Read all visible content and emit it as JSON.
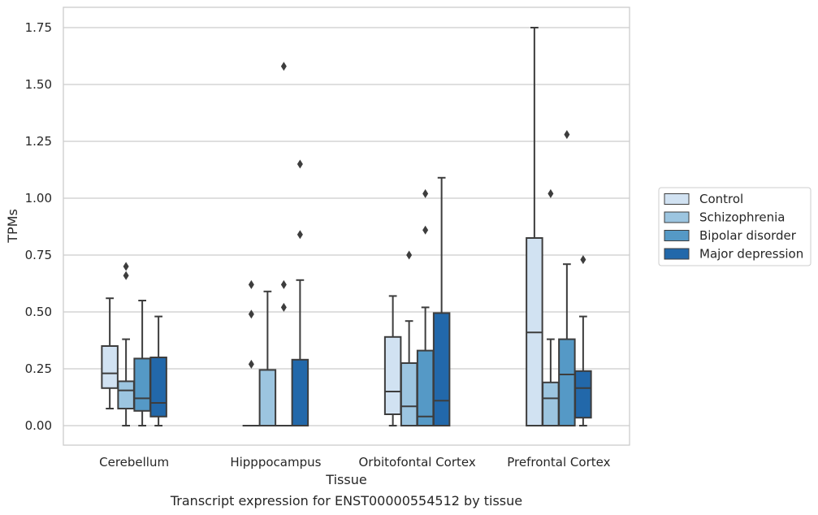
{
  "chart_data": {
    "type": "box",
    "title": "",
    "caption": "Transcript expression for ENST00000554512 by tissue",
    "xlabel": "Tissue",
    "ylabel": "TPMs",
    "ylim": [
      -0.08,
      1.84
    ],
    "yticks": [
      0.0,
      0.25,
      0.5,
      0.75,
      1.0,
      1.25,
      1.5,
      1.75
    ],
    "ytick_labels": [
      "0.00",
      "0.25",
      "0.50",
      "0.75",
      "1.00",
      "1.25",
      "1.50",
      "1.75"
    ],
    "grid": "horizontal",
    "legend_position": "right",
    "categories": [
      "Cerebellum",
      "Hipppocampus",
      "Orbitofontal Cortex",
      "Prefrontal Cortex"
    ],
    "series": [
      {
        "name": "Control",
        "color": "#d1e2f2",
        "boxes": [
          {
            "whislo": 0.075,
            "q1": 0.165,
            "med": 0.23,
            "q3": 0.35,
            "whishi": 0.56,
            "fliers": []
          },
          {
            "whislo": 0.0,
            "q1": 0.0,
            "med": 0.0,
            "q3": 0.0,
            "whishi": 0.0,
            "fliers": [
              0.27,
              0.49,
              0.62
            ]
          },
          {
            "whislo": 0.0,
            "q1": 0.05,
            "med": 0.15,
            "q3": 0.39,
            "whishi": 0.57,
            "fliers": []
          },
          {
            "whislo": 0.0,
            "q1": 0.0,
            "med": 0.41,
            "q3": 0.825,
            "whishi": 1.75,
            "fliers": []
          }
        ]
      },
      {
        "name": "Schizophrenia",
        "color": "#9cc5e0",
        "boxes": [
          {
            "whislo": 0.0,
            "q1": 0.075,
            "med": 0.155,
            "q3": 0.195,
            "whishi": 0.38,
            "fliers": [
              0.66,
              0.7
            ]
          },
          {
            "whislo": 0.0,
            "q1": 0.0,
            "med": 0.0,
            "q3": 0.245,
            "whishi": 0.59,
            "fliers": []
          },
          {
            "whislo": 0.0,
            "q1": 0.0,
            "med": 0.085,
            "q3": 0.275,
            "whishi": 0.46,
            "fliers": [
              0.75
            ]
          },
          {
            "whislo": 0.0,
            "q1": 0.0,
            "med": 0.12,
            "q3": 0.19,
            "whishi": 0.38,
            "fliers": [
              1.02
            ]
          }
        ]
      },
      {
        "name": "Bipolar disorder",
        "color": "#5599c6",
        "boxes": [
          {
            "whislo": 0.0,
            "q1": 0.065,
            "med": 0.12,
            "q3": 0.295,
            "whishi": 0.55,
            "fliers": []
          },
          {
            "whislo": 0.0,
            "q1": 0.0,
            "med": 0.0,
            "q3": 0.0,
            "whishi": 0.0,
            "fliers": [
              0.52,
              0.62,
              1.58
            ]
          },
          {
            "whislo": 0.0,
            "q1": 0.0,
            "med": 0.04,
            "q3": 0.33,
            "whishi": 0.52,
            "fliers": [
              0.86,
              1.02
            ]
          },
          {
            "whislo": 0.0,
            "q1": 0.0,
            "med": 0.225,
            "q3": 0.38,
            "whishi": 0.71,
            "fliers": [
              1.28
            ]
          }
        ]
      },
      {
        "name": "Major depression",
        "color": "#2268aa",
        "boxes": [
          {
            "whislo": 0.0,
            "q1": 0.04,
            "med": 0.1,
            "q3": 0.3,
            "whishi": 0.48,
            "fliers": []
          },
          {
            "whislo": 0.0,
            "q1": 0.0,
            "med": 0.0,
            "q3": 0.29,
            "whishi": 0.64,
            "fliers": [
              0.84,
              1.15
            ]
          },
          {
            "whislo": 0.0,
            "q1": 0.0,
            "med": 0.11,
            "q3": 0.495,
            "whishi": 1.09,
            "fliers": []
          },
          {
            "whislo": 0.0,
            "q1": 0.035,
            "med": 0.165,
            "q3": 0.24,
            "whishi": 0.48,
            "fliers": [
              0.73
            ]
          }
        ]
      }
    ]
  }
}
